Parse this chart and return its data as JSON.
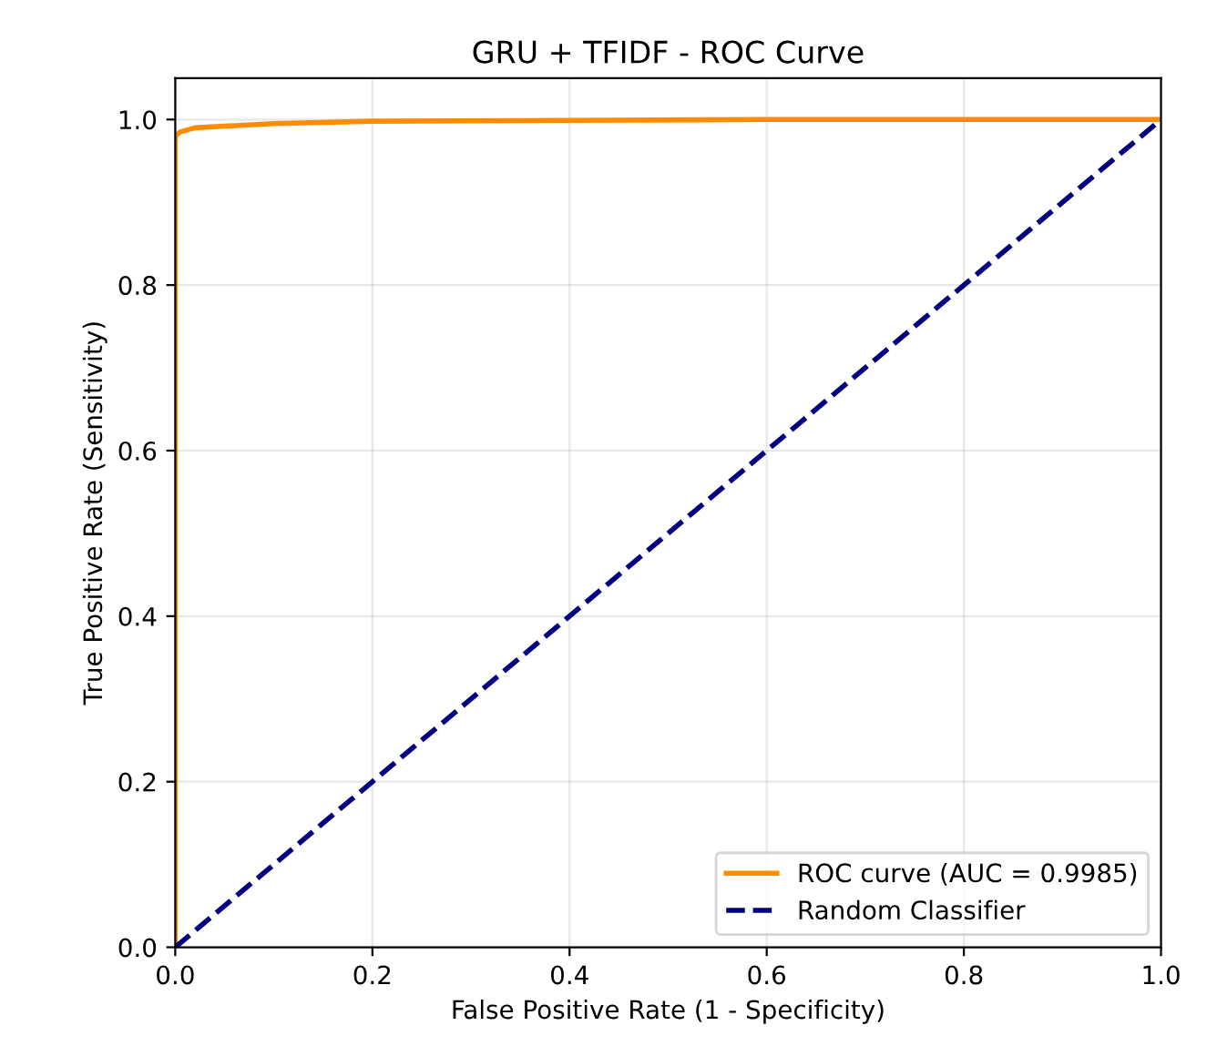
{
  "chart_data": {
    "type": "line",
    "title": "GRU + TFIDF - ROC Curve",
    "xlabel": "False Positive Rate (1 - Specificity)",
    "ylabel": "True Positive Rate (Sensitivity)",
    "series": [
      {
        "name": "ROC curve (AUC = 0.9985)",
        "color": "#ff8c00",
        "x": [
          0,
          0,
          0.005,
          0.02,
          0.05,
          0.1,
          0.2,
          0.4,
          0.6,
          1.0
        ],
        "values": [
          0,
          0.98,
          0.985,
          0.99,
          0.992,
          0.995,
          0.998,
          0.999,
          1.0,
          1.0
        ],
        "line_style": "solid"
      },
      {
        "name": "Random Classifier",
        "color": "#000080",
        "x": [
          0,
          1
        ],
        "values": [
          0,
          1
        ],
        "line_style": "dashed"
      }
    ],
    "xlim": [
      0,
      1
    ],
    "ylim": [
      0,
      1.05
    ],
    "xticks": [
      {
        "value": 0,
        "label": "0.0"
      },
      0.2,
      0.4,
      0.6,
      0.8,
      {
        "value": 1,
        "label": "1.0"
      }
    ],
    "yticks": [
      {
        "value": 0,
        "label": "0.0"
      },
      0.2,
      0.4,
      0.6,
      0.8,
      {
        "value": 1,
        "label": "1.0"
      }
    ],
    "grid": true,
    "legend": "lower right",
    "marker": "none"
  }
}
